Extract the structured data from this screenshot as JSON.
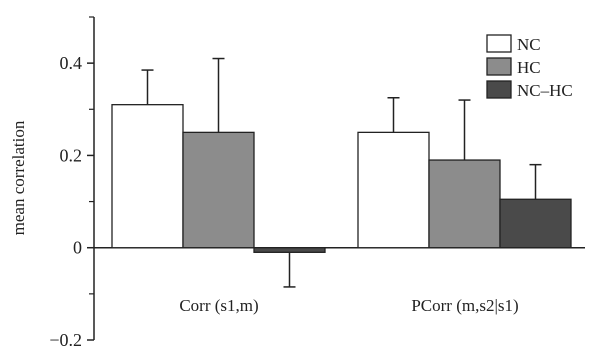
{
  "chart_data": {
    "type": "bar",
    "categories": [
      "Corr (s1,m)",
      "PCorr (m,s2|s1)"
    ],
    "series": [
      {
        "name": "NC",
        "color": "#ffffff",
        "values": [
          0.31,
          0.25
        ],
        "errors": [
          0.075,
          0.075
        ]
      },
      {
        "name": "HC",
        "color": "#8c8c8c",
        "values": [
          0.25,
          0.19
        ],
        "errors": [
          0.16,
          0.13
        ]
      },
      {
        "name": "NC–HC",
        "color": "#4a4a4a",
        "values": [
          -0.01,
          0.105
        ],
        "errors": [
          0.075,
          0.075
        ]
      }
    ],
    "ylabel": "mean correlation",
    "ylim": [
      -0.2,
      0.5
    ],
    "yticks": [
      -0.2,
      0,
      0.2,
      0.4
    ],
    "ytick_labels": [
      "−0.2",
      "0",
      "0.2",
      "0.4"
    ],
    "minor_yticks": [
      -0.1,
      0.1,
      0.3,
      0.5
    ],
    "legend_position": "top-right",
    "grid": false
  }
}
